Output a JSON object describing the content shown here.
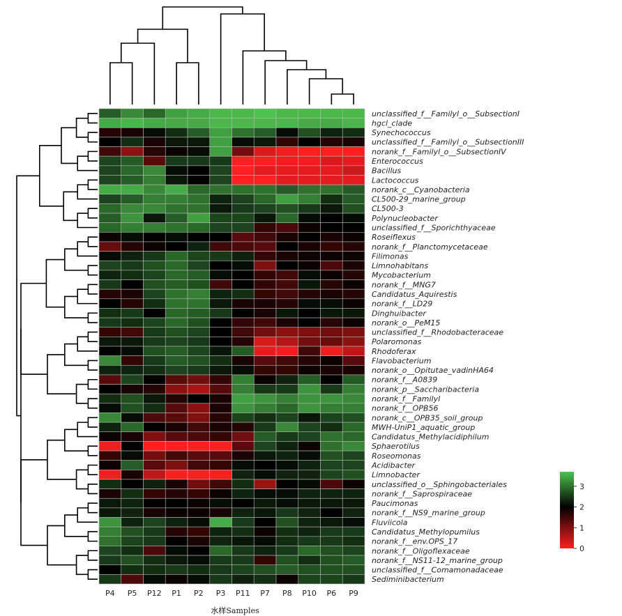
{
  "chart_data": {
    "type": "heatmap",
    "xlabel": "水样Samples",
    "columns": [
      "P4",
      "P5",
      "P12",
      "P1",
      "P2",
      "P3",
      "P11",
      "P7",
      "P8",
      "P10",
      "P6",
      "P9"
    ],
    "rows": [
      "unclassified_f__Familyl_o__SubsectionI",
      "hgcl_clade",
      "Synechococcus",
      "unclassified_f__Familyl_o__SubsectionIII",
      "norank_f__Familyl_o__SubsectionIV",
      "Enterococcus",
      "Bacillus",
      "Lactococcus",
      "norank_c__Cyanobacteria",
      "CL500-29_marine_group",
      "CL500-3",
      "Polynucleobacter",
      "unclassified_f__Sporichthyaceae",
      "Roseiflexus",
      "norank_f__Planctomycetaceae",
      "Filimonas",
      "Limnohabitans",
      "Mycobacterium",
      "norank_f__MNG7",
      "Candidatus_Aquirestis",
      "norank_f__LD29",
      "Dinghuibacter",
      "norank_o__PeM15",
      "unclassified_f__Rhodobacteraceae",
      "Polaromonas",
      "Rhodoferax",
      "Flavobacterium",
      "norank_o__Opitutae_vadinHA64",
      "norank_f__A0839",
      "norank_p__Saccharibacteria",
      "norank_f__Familyl",
      "norank_f__OPB56",
      "norank_c__OPB35_soil_group",
      "MWH-UniP1_aquatic_group",
      "Candidatus_Methylacidiphilum",
      "Sphaerotilus",
      "Roseomonas",
      "Acidibacter",
      "Limnobacter",
      "unclassified_o__Sphingobacteriales",
      "norank_f__Saprospiraceae",
      "Paucimonas",
      "norank_f__NS9_marine_group",
      "Fluviicola",
      "Candidatus_Methylopumilus",
      "norank_f__env.OPS_17",
      "norank_f__Oligoflexaceae",
      "norank_f__NS11-12_marine_group",
      "unclassified_f__Comamonadaceae",
      "Sediminibacterium"
    ],
    "values": [
      [
        2.8,
        3.2,
        2.9,
        3.4,
        3.5,
        3.6,
        3.6,
        3.7,
        3.6,
        3.6,
        3.6,
        3.6
      ],
      [
        3.5,
        3.6,
        3.5,
        3.5,
        3.5,
        3.6,
        3.6,
        3.6,
        3.6,
        3.5,
        3.5,
        3.6
      ],
      [
        1.7,
        1.8,
        2.1,
        2.4,
        2.8,
        3.4,
        3.0,
        2.8,
        2.1,
        2.7,
        2.3,
        2.4
      ],
      [
        2.0,
        2.4,
        1.8,
        2.2,
        2.2,
        3.4,
        2.1,
        2.2,
        1.6,
        2.0,
        1.7,
        1.8
      ],
      [
        1.5,
        0.9,
        1.7,
        1.9,
        2.1,
        3.4,
        1.1,
        0.3,
        0.1,
        0.0,
        0.0,
        0.0
      ],
      [
        2.6,
        2.8,
        1.3,
        2.5,
        2.5,
        2.5,
        0.0,
        0.0,
        0.1,
        0.1,
        0.3,
        0.2
      ],
      [
        2.6,
        2.9,
        3.2,
        2.1,
        2.0,
        2.6,
        0.0,
        0.2,
        0.2,
        0.2,
        0.2,
        0.4
      ],
      [
        2.6,
        2.8,
        3.1,
        2.2,
        2.0,
        2.6,
        0.0,
        0.0,
        0.2,
        0.2,
        0.2,
        0.2
      ],
      [
        3.5,
        3.5,
        3.2,
        3.5,
        2.9,
        3.0,
        3.0,
        3.0,
        2.8,
        3.0,
        3.0,
        2.8
      ],
      [
        2.6,
        2.8,
        3.1,
        3.1,
        3.0,
        2.3,
        2.6,
        2.9,
        3.4,
        3.1,
        2.4,
        2.8
      ],
      [
        2.9,
        3.2,
        3.2,
        3.0,
        3.0,
        2.2,
        2.5,
        2.6,
        2.7,
        2.5,
        2.2,
        2.7
      ],
      [
        2.8,
        3.3,
        2.2,
        2.8,
        3.4,
        2.6,
        2.6,
        2.2,
        2.9,
        2.1,
        2.0,
        2.1
      ],
      [
        2.9,
        3.1,
        3.1,
        3.0,
        2.9,
        2.6,
        2.6,
        1.6,
        1.4,
        1.9,
        2.0,
        2.0
      ],
      [
        1.9,
        2.1,
        2.0,
        2.1,
        2.0,
        2.0,
        1.3,
        1.5,
        1.8,
        2.0,
        1.8,
        1.9
      ],
      [
        1.2,
        1.7,
        1.9,
        2.0,
        2.3,
        1.5,
        1.4,
        1.3,
        2.0,
        1.8,
        1.6,
        1.7
      ],
      [
        2.1,
        2.3,
        2.5,
        2.9,
        2.6,
        2.5,
        2.3,
        1.6,
        1.8,
        1.9,
        1.9,
        1.9
      ],
      [
        2.6,
        2.5,
        2.7,
        2.9,
        2.6,
        2.0,
        2.1,
        1.0,
        2.0,
        1.9,
        1.4,
        1.8
      ],
      [
        2.3,
        2.4,
        2.6,
        2.9,
        2.8,
        2.1,
        2.0,
        1.6,
        1.5,
        2.1,
        1.9,
        1.7
      ],
      [
        2.5,
        2.0,
        2.7,
        2.8,
        2.7,
        1.5,
        2.0,
        1.6,
        1.5,
        2.2,
        1.7,
        1.9
      ],
      [
        1.7,
        1.8,
        2.6,
        3.0,
        3.1,
        2.3,
        2.4,
        1.6,
        1.5,
        1.7,
        1.8,
        1.7
      ],
      [
        2.0,
        1.7,
        2.4,
        3.0,
        3.0,
        2.2,
        1.8,
        1.8,
        1.7,
        2.1,
        2.1,
        1.9
      ],
      [
        2.4,
        2.5,
        2.0,
        2.9,
        2.8,
        2.5,
        2.0,
        1.8,
        2.2,
        2.0,
        2.2,
        2.2
      ],
      [
        2.5,
        2.4,
        2.6,
        2.9,
        2.7,
        2.0,
        1.6,
        1.5,
        1.8,
        2.0,
        1.7,
        1.9
      ],
      [
        1.6,
        1.5,
        2.5,
        2.7,
        2.6,
        2.0,
        1.5,
        1.1,
        0.9,
        1.0,
        1.1,
        1.0
      ],
      [
        2.2,
        2.2,
        2.5,
        2.6,
        2.5,
        2.0,
        1.7,
        0.3,
        0.6,
        1.1,
        1.2,
        0.9
      ],
      [
        2.0,
        2.1,
        2.7,
        2.8,
        2.6,
        2.2,
        2.8,
        0.2,
        0.1,
        1.5,
        0.1,
        0.5
      ],
      [
        3.2,
        1.6,
        2.5,
        2.8,
        2.7,
        2.4,
        1.8,
        1.3,
        1.5,
        1.7,
        1.9,
        1.3
      ],
      [
        2.3,
        2.3,
        2.4,
        2.6,
        2.5,
        2.2,
        2.1,
        1.6,
        1.6,
        1.9,
        1.8,
        1.8
      ],
      [
        1.3,
        2.6,
        2.0,
        1.3,
        1.1,
        1.6,
        3.1,
        1.9,
        2.3,
        2.8,
        2.0,
        2.8
      ],
      [
        2.0,
        1.8,
        1.7,
        0.9,
        0.7,
        1.3,
        3.1,
        2.5,
        2.5,
        3.3,
        2.5,
        3.1
      ],
      [
        2.4,
        2.7,
        2.2,
        1.7,
        2.0,
        1.8,
        3.4,
        3.3,
        3.1,
        3.3,
        3.3,
        3.2
      ],
      [
        2.1,
        2.7,
        2.4,
        1.3,
        0.9,
        1.8,
        3.3,
        3.1,
        2.9,
        3.3,
        3.1,
        3.1
      ],
      [
        3.2,
        2.1,
        1.4,
        1.3,
        1.0,
        1.7,
        2.6,
        2.4,
        2.6,
        2.2,
        2.6,
        2.7
      ],
      [
        2.3,
        2.9,
        2.0,
        1.8,
        1.5,
        1.8,
        1.7,
        2.5,
        3.2,
        2.6,
        2.4,
        2.9
      ],
      [
        1.9,
        1.8,
        1.0,
        1.3,
        1.4,
        1.6,
        1.1,
        2.8,
        2.5,
        2.6,
        3.0,
        2.9
      ],
      [
        0.1,
        2.0,
        0.0,
        0.0,
        0.0,
        0.0,
        1.3,
        2.6,
        2.3,
        1.9,
        3.0,
        3.2
      ],
      [
        1.6,
        2.1,
        1.1,
        1.5,
        1.3,
        1.3,
        1.8,
        2.2,
        2.3,
        2.1,
        2.7,
        2.6
      ],
      [
        1.9,
        2.8,
        1.3,
        1.0,
        1.5,
        1.6,
        2.1,
        2.0,
        2.1,
        2.3,
        2.6,
        2.6
      ],
      [
        0.1,
        1.8,
        0.5,
        0.0,
        0.0,
        0.0,
        2.3,
        2.1,
        2.3,
        2.3,
        2.6,
        2.7
      ],
      [
        2.4,
        2.0,
        2.3,
        1.8,
        1.1,
        1.5,
        2.4,
        0.8,
        2.0,
        2.1,
        1.4,
        1.9
      ],
      [
        1.8,
        2.4,
        1.6,
        1.7,
        1.6,
        1.9,
        2.3,
        2.1,
        2.1,
        2.3,
        2.3,
        2.3
      ],
      [
        2.2,
        2.3,
        2.0,
        2.0,
        1.9,
        2.1,
        2.0,
        2.2,
        2.1,
        2.2,
        2.2,
        2.2
      ],
      [
        2.2,
        2.3,
        1.8,
        1.9,
        1.9,
        1.8,
        2.3,
        2.2,
        2.5,
        2.3,
        2.0,
        2.3
      ],
      [
        3.3,
        2.3,
        2.6,
        2.3,
        2.1,
        3.5,
        2.5,
        2.0,
        2.7,
        2.3,
        2.2,
        2.1
      ],
      [
        3.1,
        2.7,
        2.5,
        1.7,
        1.6,
        2.3,
        2.4,
        1.9,
        2.4,
        2.3,
        2.5,
        2.5
      ],
      [
        3.0,
        2.6,
        2.5,
        2.0,
        1.8,
        2.3,
        2.2,
        2.1,
        2.4,
        2.5,
        2.5,
        2.4
      ],
      [
        2.6,
        2.4,
        1.4,
        2.1,
        2.0,
        2.9,
        2.5,
        2.3,
        2.5,
        2.9,
        2.7,
        2.6
      ],
      [
        2.5,
        2.7,
        2.4,
        2.2,
        2.1,
        2.5,
        2.5,
        1.6,
        2.7,
        2.4,
        2.7,
        2.8
      ],
      [
        2.0,
        2.4,
        2.4,
        2.5,
        2.4,
        2.5,
        2.6,
        2.7,
        2.8,
        2.7,
        2.7,
        2.7
      ],
      [
        2.5,
        1.4,
        2.1,
        1.9,
        2.1,
        2.5,
        2.3,
        2.4,
        1.9,
        2.6,
        2.6,
        2.5
      ]
    ],
    "color_scale": {
      "min": 0,
      "mid": 2,
      "max": 3.7,
      "low_color": "#ff1f1f",
      "mid_color": "#000000",
      "high_color": "#4ec24e"
    },
    "legend": {
      "ticks": [
        "3",
        "2",
        "1",
        "0"
      ],
      "tick_values": [
        3,
        2,
        1,
        0
      ],
      "placement": "bottom-right"
    },
    "column_dendrogram": "((P4,P5),P12),(P1,P2)),(P3,(P11,(P7,(P8,(P10,(P6,P9))))))",
    "row_dendrogram_shown": true,
    "grid": true
  }
}
